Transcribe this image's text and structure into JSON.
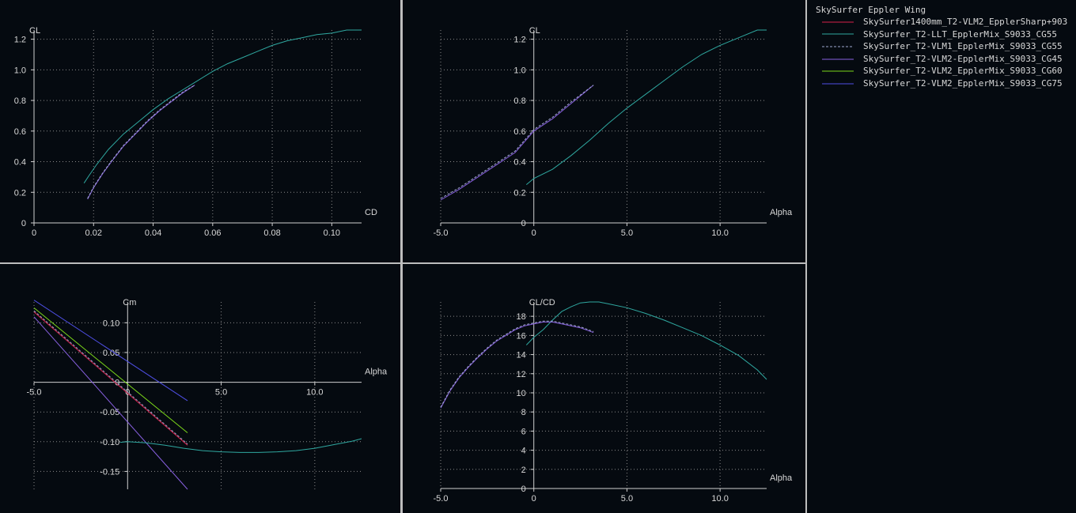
{
  "legend": {
    "title": "SkySurfer Eppler Wing",
    "items": [
      {
        "label": "SkySurfer1400mm_T2-VLM2_EpplerSharp+903",
        "color": "#d8204a",
        "dashed": false
      },
      {
        "label": "SkySurfer_T2-LLT_EpplerMix_S9033_CG55",
        "color": "#2fa8a0",
        "dashed": false
      },
      {
        "label": "SkySurfer_T2-VLM1_EpplerMix_S9033_CG55",
        "color": "#a0a8d0",
        "dashed": true
      },
      {
        "label": "SkySurfer_T2-VLM2-EpplerMix_S9033_CG45",
        "color": "#8860e0",
        "dashed": false
      },
      {
        "label": "SkySurfer_T2-VLM2_EpplerMix_S9033_CG60",
        "color": "#7cd81a",
        "dashed": false
      },
      {
        "label": "SkySurfer_T2-VLM2_EpplerMix_S9033_CG75",
        "color": "#4f4fe6",
        "dashed": false
      }
    ]
  },
  "chart_data": [
    {
      "type": "line",
      "xlabel": "CD",
      "ylabel": "CL",
      "xlim": [
        0,
        0.11
      ],
      "ylim": [
        0,
        1.26
      ],
      "xticks": [
        0,
        0.02,
        0.04,
        0.06,
        0.08,
        0.1
      ],
      "xtick_labels": [
        "0",
        "0.02",
        "0.04",
        "0.06",
        "0.08",
        "0.10"
      ],
      "yticks": [
        0,
        0.2,
        0.4,
        0.6,
        0.8,
        1.0,
        1.2
      ],
      "ytick_labels": [
        "0",
        "0.2",
        "0.4",
        "0.6",
        "0.8",
        "1.0",
        "1.2"
      ],
      "grid": true,
      "series": [
        {
          "name": "SkySurfer_T2-LLT_EpplerMix_S9033_CG55",
          "color": "#2fa8a0",
          "x": [
            0.0168,
            0.0185,
            0.021,
            0.025,
            0.03,
            0.035,
            0.04,
            0.045,
            0.05,
            0.055,
            0.06,
            0.065,
            0.07,
            0.075,
            0.08,
            0.085,
            0.09,
            0.095,
            0.1,
            0.105,
            0.11
          ],
          "y": [
            0.26,
            0.31,
            0.38,
            0.48,
            0.58,
            0.66,
            0.74,
            0.81,
            0.87,
            0.93,
            0.99,
            1.04,
            1.08,
            1.12,
            1.16,
            1.19,
            1.21,
            1.23,
            1.24,
            1.26,
            1.26
          ]
        },
        {
          "name": "SkySurfer_T2-VLM2-EpplerMix_S9033_CG45",
          "color": "#8860e0",
          "x": [
            0.018,
            0.02,
            0.023,
            0.026,
            0.03,
            0.034,
            0.038,
            0.042,
            0.046,
            0.05,
            0.054
          ],
          "y": [
            0.155,
            0.23,
            0.32,
            0.4,
            0.5,
            0.58,
            0.66,
            0.73,
            0.79,
            0.85,
            0.9
          ]
        },
        {
          "name": "SkySurfer_T2-VLM1_EpplerMix_S9033_CG55",
          "color": "#a0a8d0",
          "dashed": true,
          "x": [
            0.018,
            0.02,
            0.023,
            0.026,
            0.03,
            0.034,
            0.038,
            0.042,
            0.046,
            0.05,
            0.054
          ],
          "y": [
            0.16,
            0.235,
            0.325,
            0.405,
            0.505,
            0.585,
            0.665,
            0.735,
            0.795,
            0.855,
            0.9
          ]
        }
      ]
    },
    {
      "type": "line",
      "xlabel": "Alpha",
      "ylabel": "CL",
      "xlim": [
        -5,
        12.5
      ],
      "ylim": [
        0,
        1.26
      ],
      "xticks": [
        -5,
        0,
        5,
        10
      ],
      "xtick_labels": [
        "-5.0",
        "0",
        "5.0",
        "10.0"
      ],
      "yticks": [
        0,
        0.2,
        0.4,
        0.6,
        0.8,
        1.0,
        1.2
      ],
      "ytick_labels": [
        "0",
        "0.2",
        "0.4",
        "0.6",
        "0.8",
        "1.0",
        "1.2"
      ],
      "grid": true,
      "series": [
        {
          "name": "SkySurfer_T2-LLT_EpplerMix_S9033_CG55",
          "color": "#2fa8a0",
          "x": [
            -0.4,
            0,
            1,
            2,
            3,
            4,
            5,
            6,
            7,
            8,
            9,
            10,
            11,
            12,
            12.5
          ],
          "y": [
            0.25,
            0.29,
            0.35,
            0.44,
            0.54,
            0.65,
            0.75,
            0.84,
            0.93,
            1.02,
            1.1,
            1.16,
            1.21,
            1.26,
            1.26
          ]
        },
        {
          "name": "SkySurfer_T2-VLM2-EpplerMix_S9033_CG45",
          "color": "#8860e0",
          "x": [
            -5,
            -4,
            -3,
            -2,
            -1,
            0,
            1,
            2,
            3.2
          ],
          "y": [
            0.15,
            0.22,
            0.3,
            0.38,
            0.46,
            0.6,
            0.68,
            0.78,
            0.9
          ]
        },
        {
          "name": "SkySurfer_T2-VLM1_EpplerMix_S9033_CG55",
          "color": "#a0a8d0",
          "dashed": true,
          "x": [
            -5,
            -4,
            -3,
            -2,
            -1,
            0,
            1,
            2,
            3.2
          ],
          "y": [
            0.16,
            0.23,
            0.31,
            0.39,
            0.47,
            0.61,
            0.69,
            0.79,
            0.9
          ]
        }
      ]
    },
    {
      "type": "line",
      "xlabel": "Alpha",
      "ylabel": "Cm",
      "xlim": [
        -5,
        12.5
      ],
      "ylim": [
        -0.18,
        0.135
      ],
      "xticks": [
        -5,
        0,
        5,
        10
      ],
      "xtick_labels": [
        "-5.0",
        "0",
        "5.0",
        "10.0"
      ],
      "yticks": [
        -0.15,
        -0.1,
        -0.05,
        0,
        0.05,
        0.1
      ],
      "ytick_labels": [
        "-0.15",
        "-0.10",
        "-0.05",
        "0",
        "0.05",
        "0.10"
      ],
      "grid": true,
      "series": [
        {
          "name": "SkySurfer1400mm_T2-VLM2_EpplerSharp+903",
          "color": "#d8204a",
          "x": [
            -5,
            3.2
          ],
          "y": [
            0.118,
            -0.106
          ]
        },
        {
          "name": "SkySurfer_T2-VLM1_EpplerMix_S9033_CG55",
          "color": "#a0a8d0",
          "dashed": true,
          "x": [
            -5,
            3.2
          ],
          "y": [
            0.12,
            -0.104
          ]
        },
        {
          "name": "SkySurfer_T2-VLM2_EpplerMix_S9033_CG60",
          "color": "#7cd81a",
          "x": [
            -5,
            3.2
          ],
          "y": [
            0.125,
            -0.085
          ]
        },
        {
          "name": "SkySurfer_T2-VLM2_EpplerMix_S9033_CG75",
          "color": "#4f4fe6",
          "x": [
            -5,
            3.2
          ],
          "y": [
            0.138,
            -0.031
          ]
        },
        {
          "name": "SkySurfer_T2-VLM2-EpplerMix_S9033_CG45",
          "color": "#8860e0",
          "x": [
            -5,
            3.2
          ],
          "y": [
            0.11,
            -0.18
          ]
        },
        {
          "name": "SkySurfer_T2-LLT_EpplerMix_S9033_CG55",
          "color": "#2fa8a0",
          "x": [
            -0.4,
            0,
            1,
            2,
            3,
            4,
            5,
            6,
            7,
            8,
            9,
            10,
            11,
            12,
            12.5
          ],
          "y": [
            -0.101,
            -0.1,
            -0.102,
            -0.106,
            -0.111,
            -0.115,
            -0.117,
            -0.118,
            -0.118,
            -0.117,
            -0.115,
            -0.111,
            -0.105,
            -0.099,
            -0.095
          ]
        }
      ]
    },
    {
      "type": "line",
      "xlabel": "Alpha",
      "ylabel": "CL/CD",
      "xlim": [
        -5,
        12.5
      ],
      "ylim": [
        0,
        19.5
      ],
      "xticks": [
        -5,
        0,
        5,
        10
      ],
      "xtick_labels": [
        "-5.0",
        "0",
        "5.0",
        "10.0"
      ],
      "yticks": [
        0,
        2,
        4,
        6,
        8,
        10,
        12,
        14,
        16,
        18
      ],
      "ytick_labels": [
        "0",
        "2",
        "4",
        "6",
        "8",
        "10",
        "12",
        "14",
        "16",
        "18"
      ],
      "grid": true,
      "series": [
        {
          "name": "SkySurfer_T2-LLT_EpplerMix_S9033_CG55",
          "color": "#2fa8a0",
          "x": [
            -0.4,
            0,
            0.5,
            1,
            1.5,
            2,
            2.5,
            3,
            3.5,
            4,
            5,
            6,
            7,
            8,
            9,
            10,
            11,
            12,
            12.5
          ],
          "y": [
            15.0,
            15.8,
            16.6,
            17.6,
            18.5,
            19.0,
            19.4,
            19.5,
            19.5,
            19.3,
            18.9,
            18.3,
            17.6,
            16.8,
            16.0,
            15.0,
            13.9,
            12.4,
            11.4
          ]
        },
        {
          "name": "SkySurfer_T2-VLM2-EpplerMix_S9033_CG45",
          "color": "#8860e0",
          "x": [
            -5,
            -4.5,
            -4,
            -3.5,
            -3,
            -2.5,
            -2,
            -1.5,
            -1,
            -0.5,
            0,
            0.5,
            1,
            1.5,
            2,
            2.5,
            3.2
          ],
          "y": [
            8.4,
            10.2,
            11.6,
            12.7,
            13.7,
            14.6,
            15.4,
            16.0,
            16.6,
            17.0,
            17.2,
            17.4,
            17.4,
            17.2,
            17.0,
            16.8,
            16.3
          ]
        },
        {
          "name": "SkySurfer_T2-VLM1_EpplerMix_S9033_CG55",
          "color": "#a0a8d0",
          "dashed": true,
          "x": [
            -5,
            -4.5,
            -4,
            -3.5,
            -3,
            -2.5,
            -2,
            -1.5,
            -1,
            -0.5,
            0,
            0.5,
            1,
            1.5,
            2,
            2.5,
            3.2
          ],
          "y": [
            8.5,
            10.3,
            11.7,
            12.8,
            13.8,
            14.7,
            15.5,
            16.1,
            16.7,
            17.1,
            17.3,
            17.5,
            17.5,
            17.3,
            17.1,
            16.9,
            16.4
          ]
        }
      ]
    }
  ]
}
